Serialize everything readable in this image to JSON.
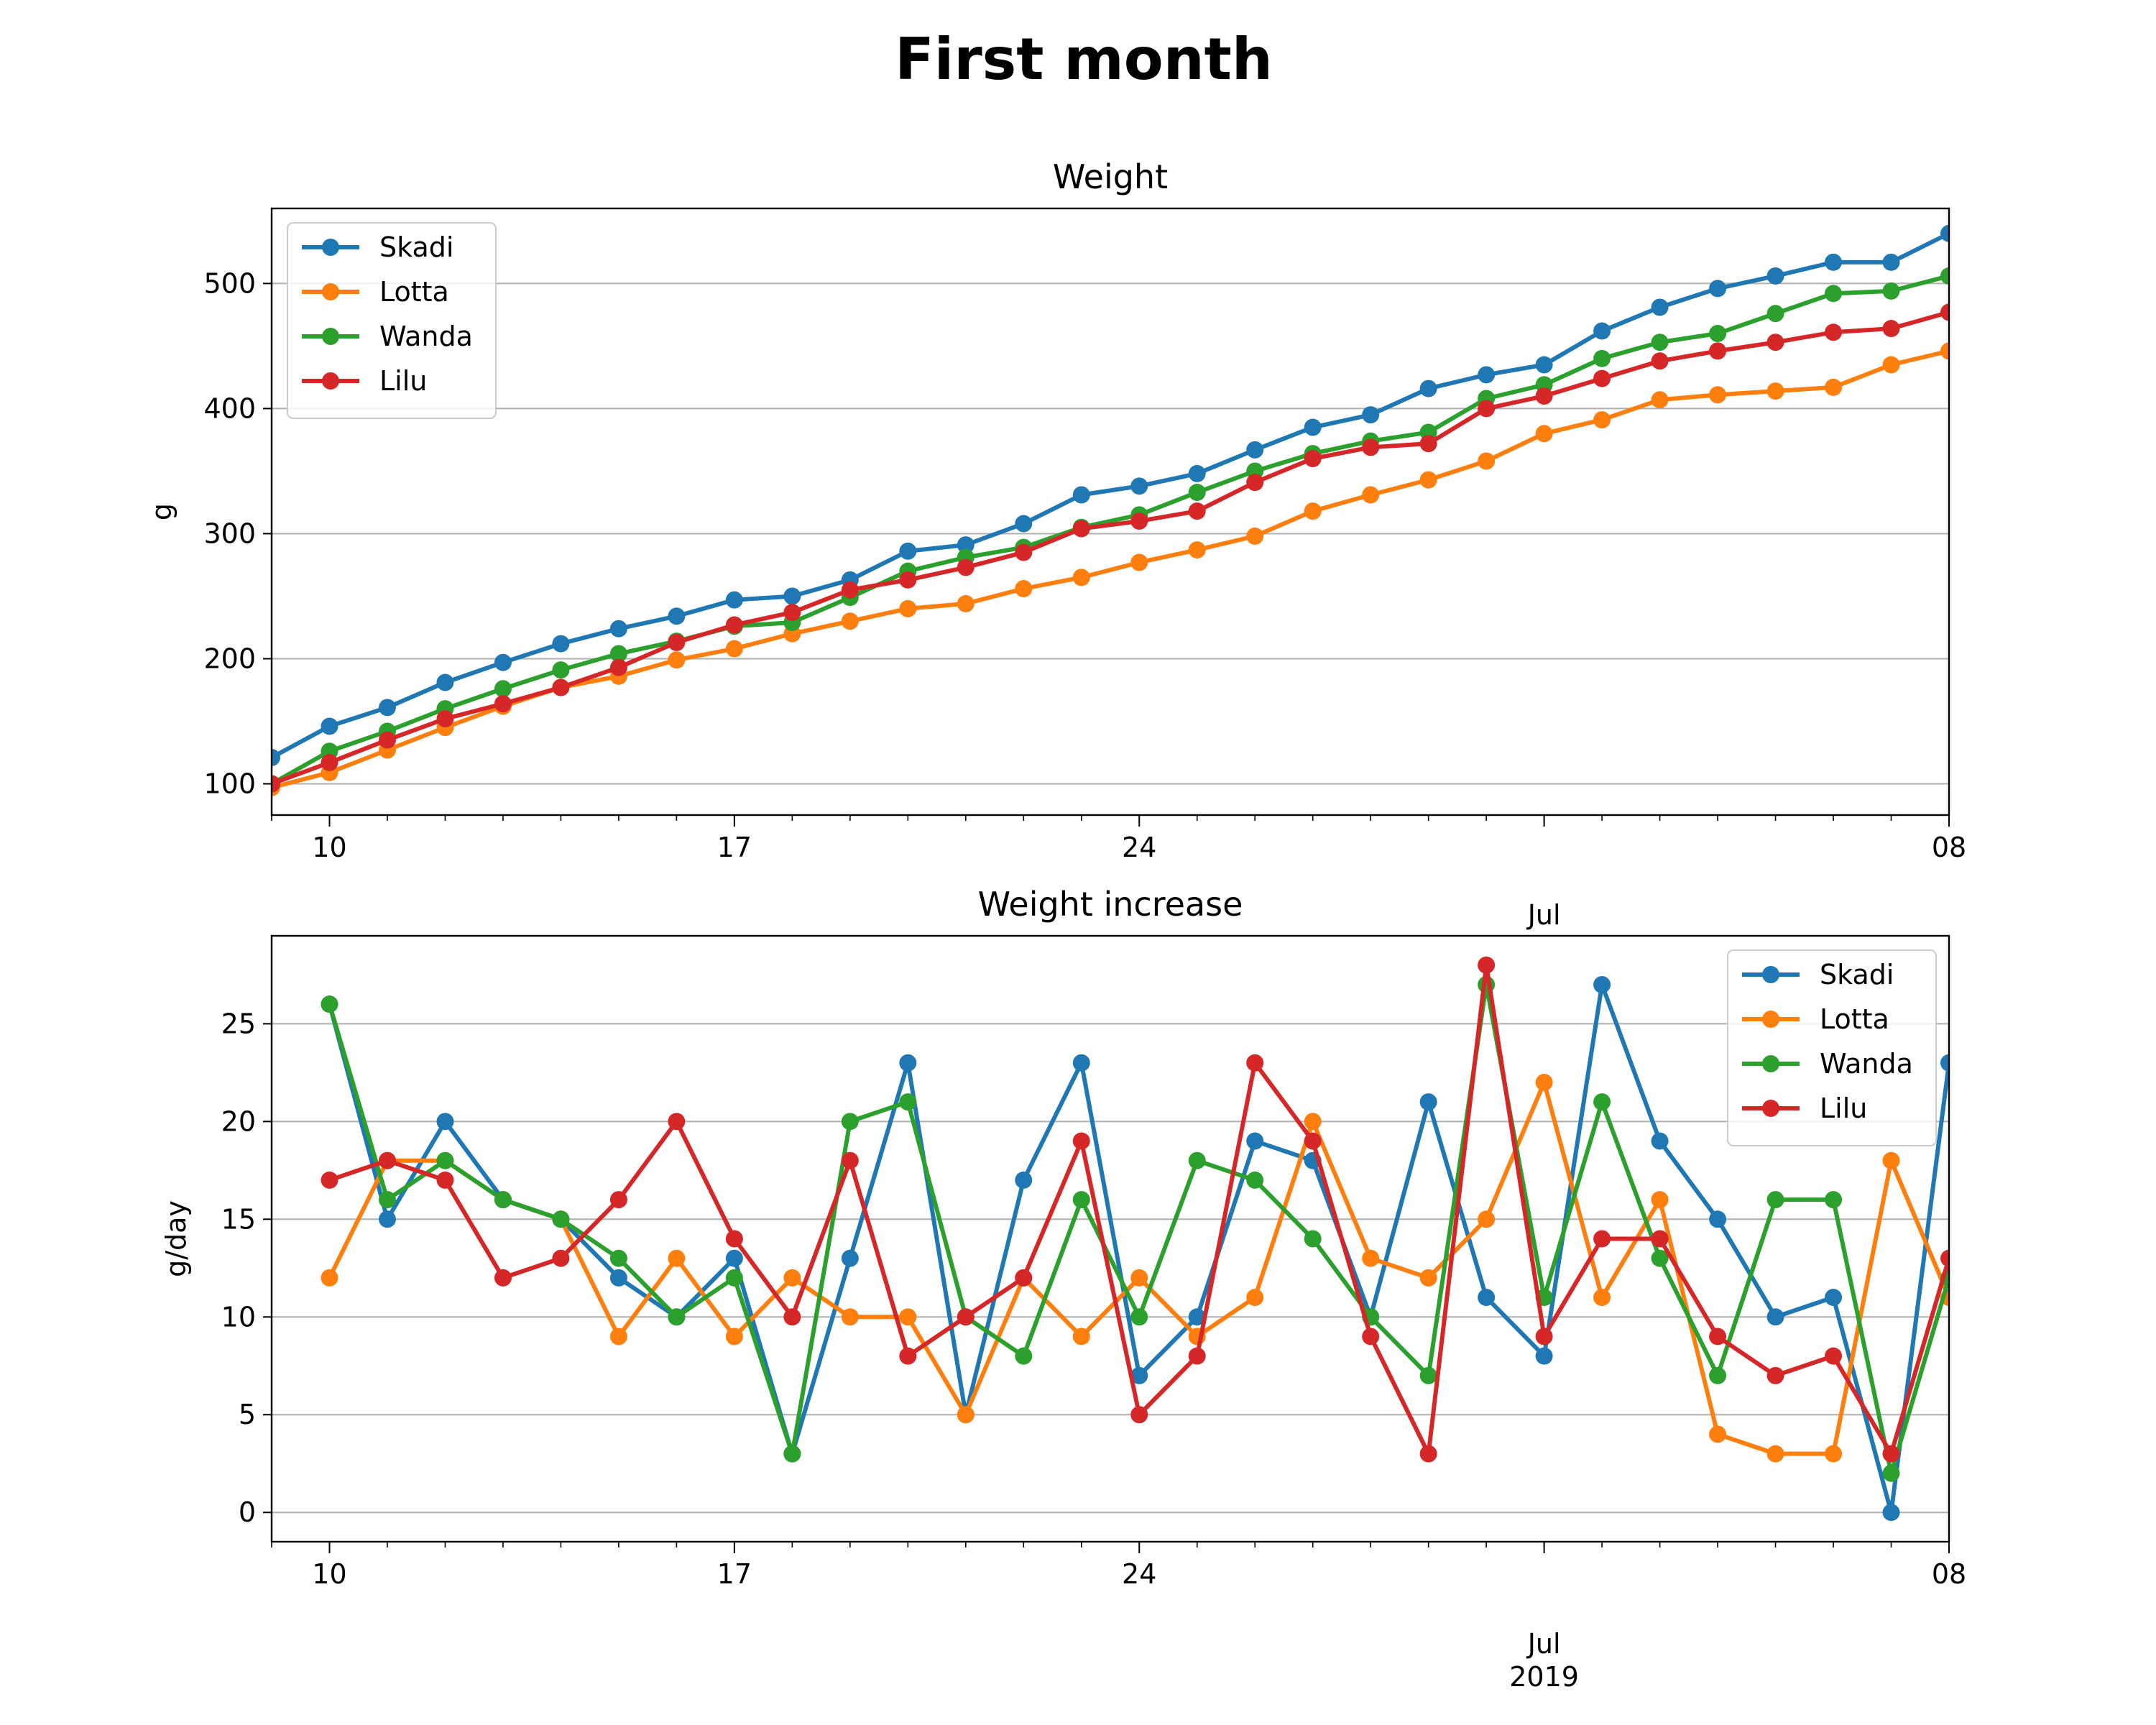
{
  "figure_title": "First month",
  "colors": {
    "Skadi": "#1f77b4",
    "Lotta": "#ff7f0e",
    "Wanda": "#2ca02c",
    "Lilu": "#d62728",
    "grid": "#b0b0b0"
  },
  "chart_data": [
    {
      "type": "line",
      "title": "Weight",
      "xlabel": "",
      "ylabel": "g",
      "x_day_range": [
        0,
        29
      ],
      "x_days": [
        0,
        1,
        2,
        3,
        4,
        5,
        6,
        7,
        8,
        9,
        10,
        11,
        12,
        13,
        14,
        15,
        16,
        17,
        18,
        19,
        20,
        21,
        22,
        23,
        24,
        25,
        26,
        27,
        28,
        29
      ],
      "ylim": [
        75,
        560
      ],
      "yticks": [
        100,
        200,
        300,
        400,
        500
      ],
      "xticks": [
        {
          "day": 1,
          "label": "10"
        },
        {
          "day": 8,
          "label": "17"
        },
        {
          "day": 15,
          "label": "24"
        },
        {
          "day": 22,
          "label": "",
          "secondary": "Jul"
        },
        {
          "day": 29,
          "label": "08"
        }
      ],
      "grid": "horizontal",
      "legend": "upper-left",
      "series": [
        {
          "name": "Skadi",
          "values": [
            121,
            146,
            161,
            181,
            197,
            212,
            224,
            234,
            247,
            250,
            263,
            286,
            291,
            308,
            331,
            338,
            348,
            367,
            385,
            395,
            416,
            427,
            435,
            462,
            481,
            496,
            506,
            517,
            517,
            540
          ]
        },
        {
          "name": "Lotta",
          "values": [
            97,
            109,
            127,
            145,
            162,
            177,
            186,
            199,
            208,
            220,
            230,
            240,
            244,
            256,
            265,
            277,
            287,
            298,
            318,
            331,
            343,
            358,
            380,
            391,
            407,
            411,
            414,
            417,
            435,
            446
          ]
        },
        {
          "name": "Wanda",
          "values": [
            100,
            126,
            142,
            160,
            176,
            191,
            204,
            214,
            226,
            229,
            249,
            270,
            281,
            289,
            305,
            315,
            333,
            350,
            364,
            374,
            381,
            408,
            419,
            440,
            453,
            460,
            476,
            492,
            494,
            506
          ]
        },
        {
          "name": "Lilu",
          "values": [
            100,
            117,
            135,
            152,
            164,
            177,
            193,
            213,
            227,
            237,
            255,
            263,
            273,
            285,
            304,
            310,
            318,
            341,
            360,
            369,
            372,
            400,
            410,
            424,
            438,
            446,
            453,
            461,
            464,
            477
          ]
        }
      ]
    },
    {
      "type": "line",
      "title": "Weight increase",
      "xlabel": "2019",
      "ylabel": "g/day",
      "x_day_range": [
        0,
        29
      ],
      "x_days": [
        1,
        2,
        3,
        4,
        5,
        6,
        7,
        8,
        9,
        10,
        11,
        12,
        13,
        14,
        15,
        16,
        17,
        18,
        19,
        20,
        21,
        22,
        23,
        24,
        25,
        26,
        27,
        28,
        29
      ],
      "ylim": [
        -1.5,
        29.5
      ],
      "yticks": [
        0,
        5,
        10,
        15,
        20,
        25
      ],
      "xticks": [
        {
          "day": 1,
          "label": "10"
        },
        {
          "day": 8,
          "label": "17"
        },
        {
          "day": 15,
          "label": "24"
        },
        {
          "day": 22,
          "label": "",
          "secondary": "Jul"
        },
        {
          "day": 29,
          "label": "08"
        }
      ],
      "grid": "horizontal",
      "legend": "upper-right",
      "series": [
        {
          "name": "Skadi",
          "values": [
            26,
            15,
            20,
            16,
            15,
            12,
            10,
            13,
            3,
            13,
            23,
            5,
            17,
            23,
            7,
            10,
            19,
            18,
            10,
            21,
            11,
            8,
            27,
            19,
            15,
            10,
            11,
            0,
            23
          ]
        },
        {
          "name": "Lotta",
          "values": [
            12,
            18,
            18,
            16,
            15,
            9,
            13,
            9,
            12,
            10,
            10,
            5,
            12,
            9,
            12,
            9,
            11,
            20,
            13,
            12,
            15,
            22,
            11,
            16,
            4,
            3,
            3,
            18,
            11
          ]
        },
        {
          "name": "Wanda",
          "values": [
            26,
            16,
            18,
            16,
            15,
            13,
            10,
            12,
            3,
            20,
            21,
            10,
            8,
            16,
            10,
            18,
            17,
            14,
            10,
            7,
            27,
            11,
            21,
            13,
            7,
            16,
            16,
            2,
            12
          ]
        },
        {
          "name": "Lilu",
          "values": [
            17,
            18,
            17,
            12,
            13,
            16,
            20,
            14,
            10,
            18,
            8,
            10,
            12,
            19,
            5,
            8,
            23,
            19,
            9,
            3,
            28,
            9,
            14,
            14,
            9,
            7,
            8,
            3,
            13
          ]
        }
      ]
    }
  ]
}
